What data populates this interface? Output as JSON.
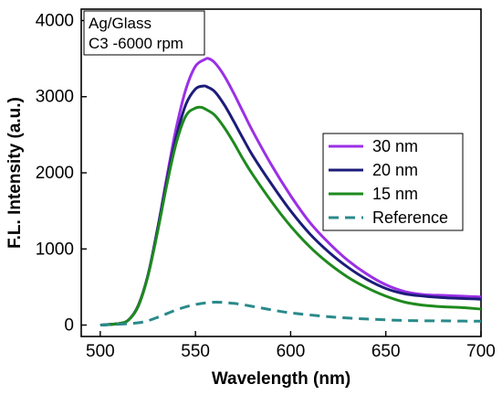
{
  "chart_data": {
    "type": "line",
    "xlabel": "Wavelength (nm)",
    "ylabel": "F.L. Intensity (a.u.)",
    "xlim": [
      490,
      700
    ],
    "ylim": [
      -150,
      4150
    ],
    "x_ticks": [
      500,
      550,
      600,
      650,
      700
    ],
    "y_ticks": [
      0,
      1000,
      2000,
      3000,
      4000
    ],
    "annotation": [
      "Ag/Glass",
      "C3 -6000 rpm"
    ],
    "legend_position": "right",
    "series": [
      {
        "name": "30 nm",
        "color": "#9B30E6",
        "style": "solid",
        "x": [
          500,
          510,
          515,
          520,
          525,
          530,
          535,
          540,
          545,
          550,
          555,
          557,
          560,
          565,
          570,
          575,
          580,
          590,
          600,
          610,
          620,
          630,
          640,
          650,
          660,
          670,
          680,
          690,
          700
        ],
        "y": [
          0,
          20,
          70,
          250,
          650,
          1250,
          1950,
          2600,
          3100,
          3400,
          3490,
          3500,
          3450,
          3280,
          3050,
          2800,
          2550,
          2100,
          1700,
          1350,
          1080,
          850,
          670,
          530,
          440,
          400,
          390,
          380,
          370
        ]
      },
      {
        "name": "20 nm",
        "color": "#1C1C7A",
        "style": "solid",
        "x": [
          500,
          510,
          515,
          520,
          525,
          530,
          535,
          540,
          545,
          550,
          554,
          556,
          560,
          565,
          570,
          575,
          580,
          590,
          600,
          610,
          620,
          630,
          640,
          650,
          660,
          670,
          680,
          690,
          700
        ],
        "y": [
          0,
          20,
          70,
          260,
          650,
          1250,
          1900,
          2480,
          2900,
          3100,
          3140,
          3130,
          3070,
          2900,
          2680,
          2450,
          2230,
          1850,
          1500,
          1200,
          960,
          760,
          600,
          480,
          410,
          380,
          360,
          350,
          340
        ]
      },
      {
        "name": "15 nm",
        "color": "#1E8A1E",
        "style": "solid",
        "x": [
          500,
          510,
          515,
          520,
          525,
          530,
          535,
          540,
          545,
          550,
          553,
          555,
          560,
          565,
          570,
          575,
          580,
          590,
          600,
          610,
          620,
          630,
          640,
          650,
          660,
          670,
          680,
          690,
          700
        ],
        "y": [
          0,
          20,
          70,
          250,
          640,
          1210,
          1850,
          2400,
          2750,
          2850,
          2860,
          2840,
          2760,
          2600,
          2400,
          2180,
          1980,
          1620,
          1300,
          1030,
          810,
          630,
          490,
          380,
          300,
          260,
          240,
          230,
          210
        ]
      },
      {
        "name": "Reference",
        "color": "#2A8A8A",
        "style": "dashed",
        "x": [
          500,
          520,
          530,
          540,
          550,
          560,
          570,
          580,
          590,
          600,
          620,
          640,
          660,
          680,
          700
        ],
        "y": [
          0,
          30,
          100,
          200,
          270,
          300,
          285,
          245,
          200,
          160,
          110,
          80,
          60,
          55,
          50
        ]
      }
    ]
  }
}
